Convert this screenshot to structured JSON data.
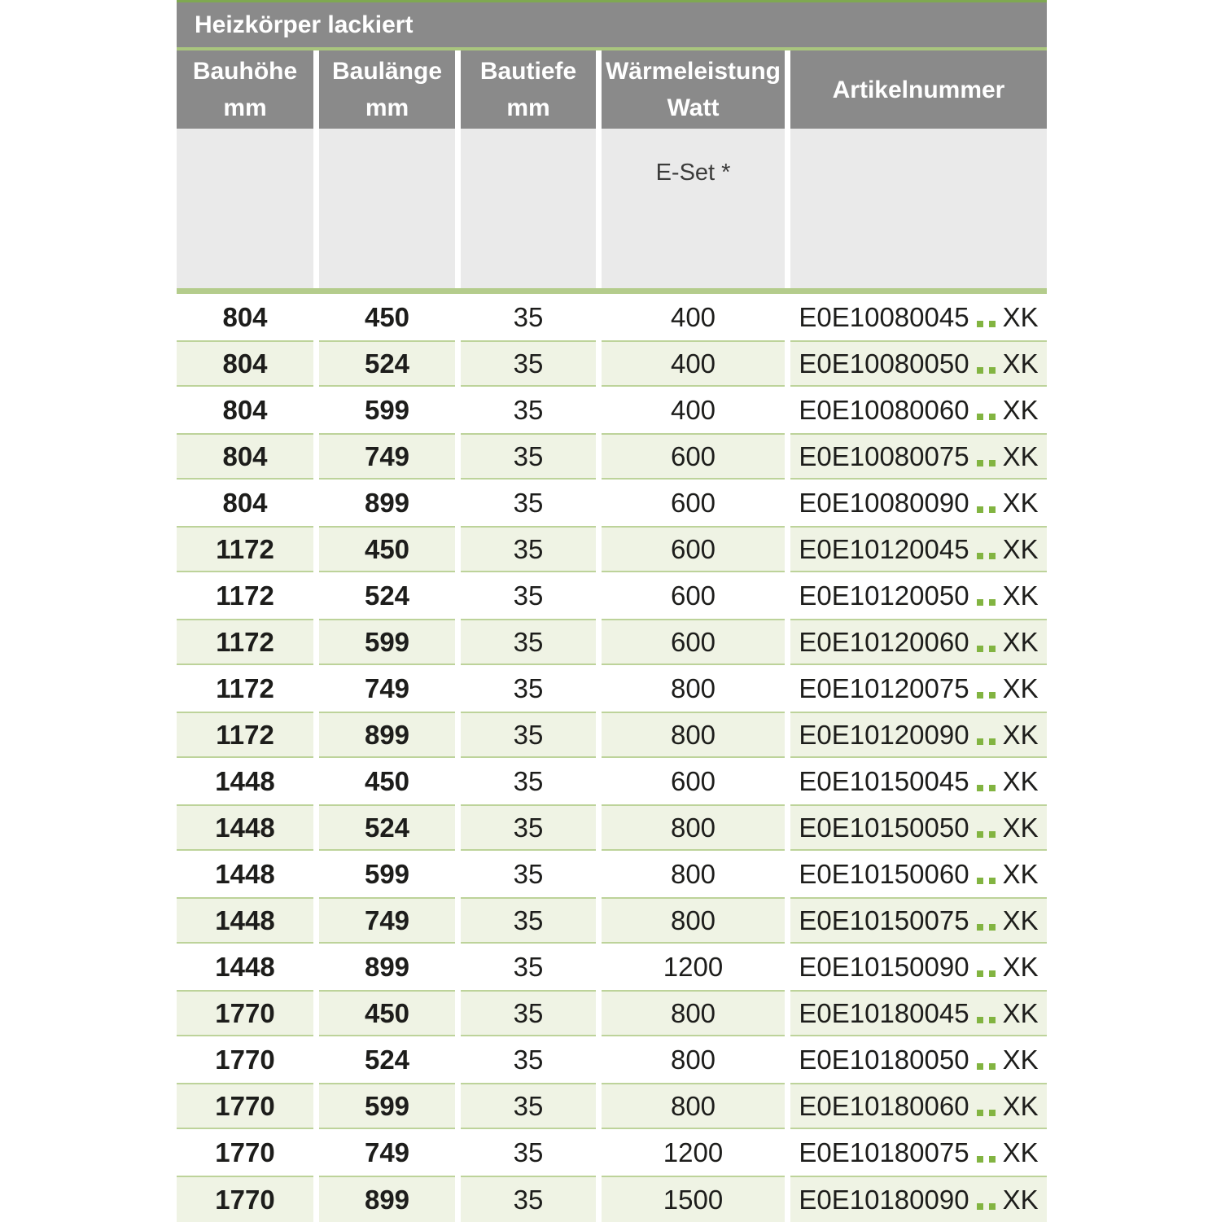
{
  "table": {
    "title": "Heizkörper lackiert",
    "columns": [
      {
        "id": "bauhoehe",
        "label": "Bauhöhe",
        "unit": "mm"
      },
      {
        "id": "baulaenge",
        "label": "Baulänge",
        "unit": "mm"
      },
      {
        "id": "bautiefe",
        "label": "Bautiefe",
        "unit": "mm"
      },
      {
        "id": "waermeleistung",
        "label": "Wärmeleistung",
        "unit": "Watt"
      },
      {
        "id": "artikelnummer",
        "label": "Artikelnummer",
        "unit": ""
      }
    ],
    "subheader": {
      "eset_label": "E-Set *"
    },
    "artikel_separator": "..",
    "rows": [
      {
        "bauhoehe": "804",
        "baulaenge": "450",
        "bautiefe": "35",
        "watt": "400",
        "artikel": "E0E10080045",
        "suffix": "XK"
      },
      {
        "bauhoehe": "804",
        "baulaenge": "524",
        "bautiefe": "35",
        "watt": "400",
        "artikel": "E0E10080050",
        "suffix": "XK"
      },
      {
        "bauhoehe": "804",
        "baulaenge": "599",
        "bautiefe": "35",
        "watt": "400",
        "artikel": "E0E10080060",
        "suffix": "XK"
      },
      {
        "bauhoehe": "804",
        "baulaenge": "749",
        "bautiefe": "35",
        "watt": "600",
        "artikel": "E0E10080075",
        "suffix": "XK"
      },
      {
        "bauhoehe": "804",
        "baulaenge": "899",
        "bautiefe": "35",
        "watt": "600",
        "artikel": "E0E10080090",
        "suffix": "XK"
      },
      {
        "bauhoehe": "1172",
        "baulaenge": "450",
        "bautiefe": "35",
        "watt": "600",
        "artikel": "E0E10120045",
        "suffix": "XK"
      },
      {
        "bauhoehe": "1172",
        "baulaenge": "524",
        "bautiefe": "35",
        "watt": "600",
        "artikel": "E0E10120050",
        "suffix": "XK"
      },
      {
        "bauhoehe": "1172",
        "baulaenge": "599",
        "bautiefe": "35",
        "watt": "600",
        "artikel": "E0E10120060",
        "suffix": "XK"
      },
      {
        "bauhoehe": "1172",
        "baulaenge": "749",
        "bautiefe": "35",
        "watt": "800",
        "artikel": "E0E10120075",
        "suffix": "XK"
      },
      {
        "bauhoehe": "1172",
        "baulaenge": "899",
        "bautiefe": "35",
        "watt": "800",
        "artikel": "E0E10120090",
        "suffix": "XK"
      },
      {
        "bauhoehe": "1448",
        "baulaenge": "450",
        "bautiefe": "35",
        "watt": "600",
        "artikel": "E0E10150045",
        "suffix": "XK"
      },
      {
        "bauhoehe": "1448",
        "baulaenge": "524",
        "bautiefe": "35",
        "watt": "800",
        "artikel": "E0E10150050",
        "suffix": "XK"
      },
      {
        "bauhoehe": "1448",
        "baulaenge": "599",
        "bautiefe": "35",
        "watt": "800",
        "artikel": "E0E10150060",
        "suffix": "XK"
      },
      {
        "bauhoehe": "1448",
        "baulaenge": "749",
        "bautiefe": "35",
        "watt": "800",
        "artikel": "E0E10150075",
        "suffix": "XK"
      },
      {
        "bauhoehe": "1448",
        "baulaenge": "899",
        "bautiefe": "35",
        "watt": "1200",
        "artikel": "E0E10150090",
        "suffix": "XK"
      },
      {
        "bauhoehe": "1770",
        "baulaenge": "450",
        "bautiefe": "35",
        "watt": "800",
        "artikel": "E0E10180045",
        "suffix": "XK"
      },
      {
        "bauhoehe": "1770",
        "baulaenge": "524",
        "bautiefe": "35",
        "watt": "800",
        "artikel": "E0E10180050",
        "suffix": "XK"
      },
      {
        "bauhoehe": "1770",
        "baulaenge": "599",
        "bautiefe": "35",
        "watt": "800",
        "artikel": "E0E10180060",
        "suffix": "XK"
      },
      {
        "bauhoehe": "1770",
        "baulaenge": "749",
        "bautiefe": "35",
        "watt": "1200",
        "artikel": "E0E10180075",
        "suffix": "XK"
      },
      {
        "bauhoehe": "1770",
        "baulaenge": "899",
        "bautiefe": "35",
        "watt": "1500",
        "artikel": "E0E10180090",
        "suffix": "XK"
      }
    ]
  },
  "colors": {
    "header_gray": "#8a8a8a",
    "top_line_green": "#7fa851",
    "banner_underline_green": "#a9c57e",
    "subheader_gray": "#eaeaea",
    "divider_green": "#b4cc8c",
    "row_green": "#eff3e4",
    "row_border_green": "#bdd39a",
    "dot_green": "#82b441",
    "text_dark": "#1d1d1b"
  }
}
